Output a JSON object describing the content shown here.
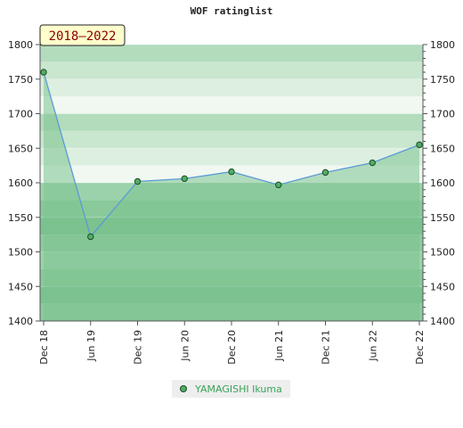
{
  "title": "WOF ratinglist",
  "period_badge": "2018–2022",
  "chart_data": {
    "type": "area",
    "title": "WOF ratinglist",
    "x_ticks": [
      "Dec 18",
      "Jun 19",
      "Dec 19",
      "Jun 20",
      "Dec 20",
      "Jun 21",
      "Dec 21",
      "Jun 22",
      "Dec 22"
    ],
    "y_ticks": [
      1400,
      1450,
      1500,
      1550,
      1600,
      1650,
      1700,
      1750,
      1800
    ],
    "ylim": [
      1400,
      1800
    ],
    "y_axis_both_sides": true,
    "legend_position": "bottom",
    "series": [
      {
        "name": "YAMAGISHI Ikuma",
        "x": [
          "Dec 18",
          "Jun 19",
          "Dec 19",
          "Jun 20",
          "Dec 20",
          "Jun 21",
          "Dec 21",
          "Jun 22",
          "Dec 22"
        ],
        "values": [
          1760,
          1522,
          1602,
          1606,
          1616,
          1597,
          1615,
          1629,
          1655
        ]
      }
    ]
  },
  "colors": {
    "line": "#5b9bd5",
    "marker_fill": "#4fae63",
    "marker_stroke": "#1e4d2a",
    "area_fill": "#7bc28f",
    "badge_bg": "#ffffcc"
  }
}
